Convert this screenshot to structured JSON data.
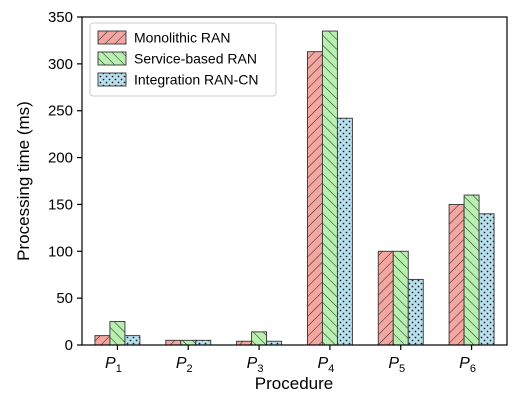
{
  "chart_data": {
    "type": "bar",
    "categories": [
      "P1",
      "P2",
      "P3",
      "P4",
      "P5",
      "P6"
    ],
    "category_labels": [
      {
        "main": "P",
        "sub": "1"
      },
      {
        "main": "P",
        "sub": "2"
      },
      {
        "main": "P",
        "sub": "3"
      },
      {
        "main": "P",
        "sub": "4"
      },
      {
        "main": "P",
        "sub": "5"
      },
      {
        "main": "P",
        "sub": "6"
      }
    ],
    "series": [
      {
        "name": "Monolithic RAN",
        "values": [
          10,
          5,
          4,
          313,
          100,
          150
        ],
        "color": "#f4a6a0",
        "pattern": "diagonal-forward"
      },
      {
        "name": "Service-based RAN",
        "values": [
          25,
          5,
          14,
          335,
          100,
          160
        ],
        "color": "#b8f0b0",
        "pattern": "diagonal-back"
      },
      {
        "name": "Integration RAN-CN",
        "values": [
          10,
          5,
          4,
          242,
          70,
          140
        ],
        "color": "#b9e0ee",
        "pattern": "dots"
      }
    ],
    "title": "",
    "xlabel": "Procedure",
    "ylabel": "Processing time (ms)",
    "ylim": [
      0,
      350
    ],
    "yticks": [
      0,
      50,
      100,
      150,
      200,
      250,
      300,
      350
    ],
    "grid": false,
    "legend": "top-left"
  }
}
